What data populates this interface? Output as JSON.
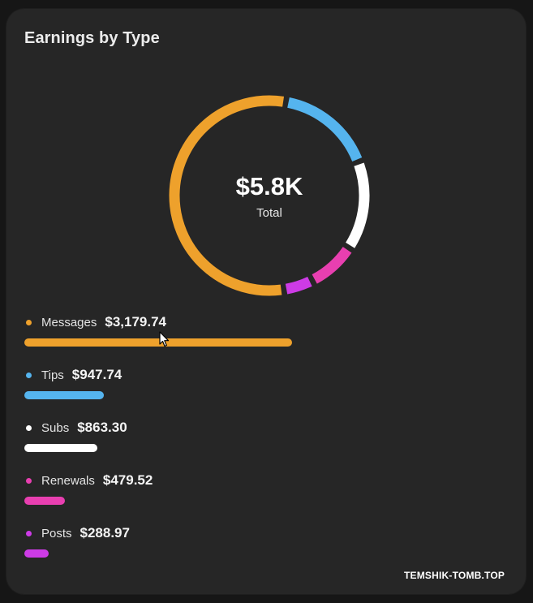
{
  "card": {
    "title": "Earnings by Type"
  },
  "donut": {
    "total_value": "$5.8K",
    "total_label": "Total"
  },
  "chart_data": {
    "type": "donut",
    "title": "Earnings by Type",
    "categories": [
      "Messages",
      "Tips",
      "Subs",
      "Renewals",
      "Posts"
    ],
    "values": [
      3179.74,
      947.74,
      863.3,
      479.52,
      288.97
    ],
    "display_values": [
      "$3,179.74",
      "$947.74",
      "$863.30",
      "$479.52",
      "$288.97"
    ],
    "colors": [
      "#eea12c",
      "#55b4ee",
      "#ffffff",
      "#e83fb0",
      "#cd3be6"
    ],
    "center_text": "$5.8K",
    "center_subtext": "Total"
  },
  "legend": {
    "items": [
      {
        "label": "Messages",
        "value": "$3,179.74",
        "color": "#eea12c",
        "icon": "dot-icon"
      },
      {
        "label": "Tips",
        "value": "$947.74",
        "color": "#55b4ee",
        "icon": "dot-icon"
      },
      {
        "label": "Subs",
        "value": "$863.30",
        "color": "#ffffff",
        "icon": "dot-icon"
      },
      {
        "label": "Renewals",
        "value": "$479.52",
        "color": "#e83fb0",
        "icon": "dot-icon"
      },
      {
        "label": "Posts",
        "value": "$288.97",
        "color": "#cd3be6",
        "icon": "dot-icon"
      }
    ]
  },
  "cursor": {
    "icon": "mouse-pointer-icon"
  },
  "watermark": {
    "text": "TEMSHIK-TOMB.TOP"
  }
}
